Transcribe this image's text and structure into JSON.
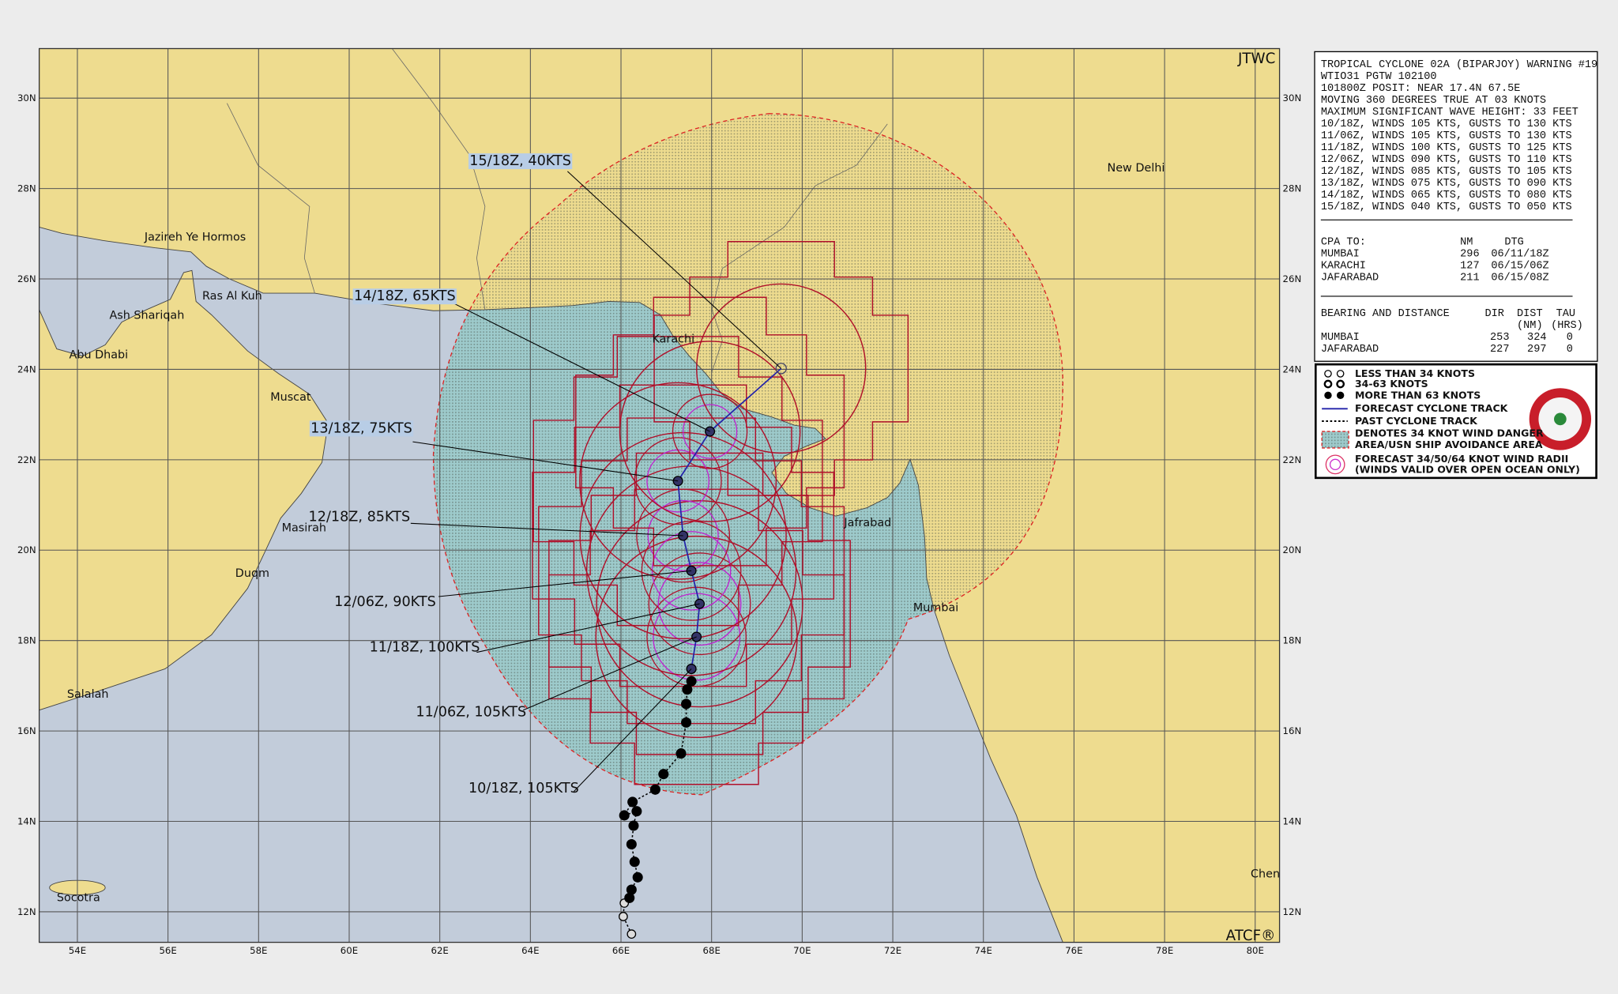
{
  "map": {
    "agency": "JTWC",
    "footer": "ATCF®",
    "lat_labels": [
      "30N",
      "28N",
      "26N",
      "24N",
      "22N",
      "20N",
      "18N",
      "16N",
      "14N",
      "12N"
    ],
    "lon_labels": [
      "54E",
      "56E",
      "58E",
      "60E",
      "62E",
      "64E",
      "66E",
      "68E",
      "70E",
      "72E",
      "74E",
      "76E",
      "78E",
      "80E"
    ],
    "places": [
      "New Delhi",
      "Jazireh Ye Hormos",
      "Ras Al Kuh",
      "Ash Shariqah",
      "Abu Dhabi",
      "Muscat",
      "Karachi",
      "Masirah",
      "Duqm",
      "Salalah",
      "Socotra",
      "Jafrabad",
      "Mumbai",
      "Chenn"
    ],
    "track_labels": [
      "15/18Z, 40KTS",
      "14/18Z, 65KTS",
      "13/18Z, 75KTS",
      "12/18Z, 85KTS",
      "12/06Z, 90KTS",
      "11/18Z, 100KTS",
      "11/06Z, 105KTS",
      "10/18Z, 105KTS"
    ]
  },
  "warning": {
    "lines": [
      "TROPICAL CYCLONE 02A (BIPARJOY) WARNING #19",
      "WTIO31 PGTW 102100",
      "101800Z POSIT: NEAR 17.4N 67.5E",
      "MOVING 360 DEGREES TRUE AT 03 KNOTS",
      "MAXIMUM SIGNIFICANT WAVE HEIGHT: 33 FEET",
      "10/18Z, WINDS 105 KTS, GUSTS TO 130 KTS",
      "11/06Z, WINDS 105 KTS, GUSTS TO 130 KTS",
      "11/18Z, WINDS 100 KTS, GUSTS TO 125 KTS",
      "12/06Z, WINDS 090 KTS, GUSTS TO 110 KTS",
      "12/18Z, WINDS 085 KTS, GUSTS TO 105 KTS",
      "13/18Z, WINDS 075 KTS, GUSTS TO 090 KTS",
      "14/18Z, WINDS 065 KTS, GUSTS TO 080 KTS",
      "15/18Z, WINDS 040 KTS, GUSTS TO 050 KTS"
    ],
    "cpa": {
      "headers": [
        "CPA TO:",
        "NM",
        "DTG"
      ],
      "rows": [
        [
          "MUMBAI",
          "296",
          "06/11/18Z"
        ],
        [
          "KARACHI",
          "127",
          "06/15/06Z"
        ],
        [
          "JAFARABAD",
          "211",
          "06/15/08Z"
        ]
      ]
    },
    "bearing": {
      "headers": [
        "BEARING AND DISTANCE",
        "DIR",
        "DIST",
        "TAU"
      ],
      "units": [
        "(NM)",
        "(HRS)"
      ],
      "rows": [
        [
          "MUMBAI",
          "253",
          "324",
          "0"
        ],
        [
          "JAFARABAD",
          "227",
          "297",
          "0"
        ]
      ]
    }
  },
  "legend": {
    "items": [
      "LESS THAN 34 KNOTS",
      "34-63 KNOTS",
      "MORE THAN 63 KNOTS",
      "FORECAST CYCLONE TRACK",
      "PAST CYCLONE TRACK",
      "DENOTES 34 KNOT WIND DANGER",
      "AREA/USN SHIP AVOIDANCE AREA",
      "FORECAST 34/50/64 KNOT WIND RADII",
      "(WINDS VALID OVER OPEN OCEAN ONLY)"
    ]
  }
}
